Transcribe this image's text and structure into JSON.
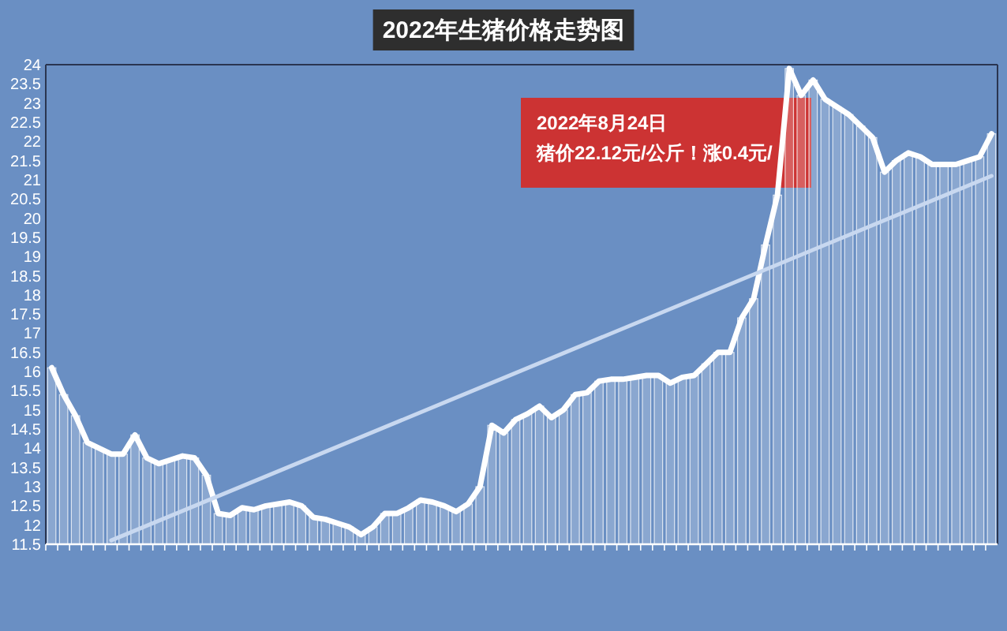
{
  "chart_data": {
    "type": "bar",
    "title": "2022年生猪价格走势图",
    "categories": [
      null,
      null,
      null,
      null,
      null,
      null,
      null,
      null,
      null,
      null,
      null,
      null,
      null,
      null,
      null,
      null,
      null,
      null,
      null,
      null,
      null,
      null,
      null,
      null,
      null,
      null,
      null,
      null,
      null,
      null,
      null,
      null,
      null,
      null,
      null,
      null,
      null,
      null,
      null,
      null,
      null,
      null,
      null,
      null,
      null,
      null,
      null,
      null,
      null,
      null,
      null,
      null,
      null,
      null,
      null,
      null,
      null,
      null,
      null,
      null,
      null,
      null,
      null,
      null,
      null,
      null,
      null,
      null,
      null,
      null,
      null,
      null,
      null,
      null,
      null,
      null,
      null,
      null,
      null,
      null
    ],
    "series": [
      {
        "color": "#ffffff",
        "values": [
          16.1,
          15.4,
          14.85,
          14.15,
          14.0,
          13.85,
          13.85,
          14.35,
          13.75,
          13.6,
          13.7,
          13.8,
          13.75,
          13.3,
          12.3,
          12.25,
          12.45,
          12.4,
          12.5,
          12.55,
          12.6,
          12.5,
          12.2,
          12.15,
          12.05,
          11.95,
          11.75,
          11.95,
          12.3,
          12.3,
          12.45,
          12.65,
          12.6,
          12.5,
          12.35,
          12.55,
          13.0,
          14.6,
          14.4,
          14.75,
          14.9,
          15.1,
          14.8,
          15.0,
          15.4,
          15.45,
          15.75,
          15.8,
          15.8,
          15.85,
          15.9,
          15.9,
          15.7,
          15.85,
          15.9,
          16.2,
          16.5,
          16.5,
          17.4,
          17.9,
          19.3,
          20.6,
          23.9,
          23.2,
          23.6,
          23.1,
          22.9,
          22.7,
          22.4,
          22.1,
          21.2,
          21.5,
          21.7,
          21.6,
          21.4,
          21.4,
          21.4,
          21.5,
          21.6,
          22.2
        ]
      },
      {
        "type": "line",
        "color": "#ffffff",
        "values": [
          16.1,
          15.4,
          14.85,
          14.15,
          14.0,
          13.85,
          13.85,
          14.35,
          13.75,
          13.6,
          13.7,
          13.8,
          13.75,
          13.3,
          12.3,
          12.25,
          12.45,
          12.4,
          12.5,
          12.55,
          12.6,
          12.5,
          12.2,
          12.15,
          12.05,
          11.95,
          11.75,
          11.95,
          12.3,
          12.3,
          12.45,
          12.65,
          12.6,
          12.5,
          12.35,
          12.55,
          13.0,
          14.6,
          14.4,
          14.75,
          14.9,
          15.1,
          14.8,
          15.0,
          15.4,
          15.45,
          15.75,
          15.8,
          15.8,
          15.85,
          15.9,
          15.9,
          15.7,
          15.85,
          15.9,
          16.2,
          16.5,
          16.5,
          17.4,
          17.9,
          19.3,
          20.6,
          23.9,
          23.2,
          23.6,
          23.1,
          22.9,
          22.7,
          22.4,
          22.1,
          21.2,
          21.5,
          21.7,
          21.6,
          21.4,
          21.4,
          21.4,
          21.5,
          21.6,
          22.2
        ]
      },
      {
        "type": "line",
        "color": "#c8d8f0",
        "values": [
          null,
          null,
          null,
          null,
          null,
          11.6,
          null,
          null,
          null,
          null,
          null,
          null,
          null,
          null,
          null,
          null,
          null,
          null,
          null,
          null,
          null,
          null,
          null,
          null,
          null,
          null,
          null,
          null,
          null,
          null,
          null,
          null,
          null,
          null,
          null,
          null,
          null,
          null,
          null,
          null,
          null,
          null,
          null,
          null,
          null,
          null,
          null,
          null,
          null,
          null,
          null,
          null,
          null,
          null,
          null,
          null,
          null,
          null,
          null,
          null,
          null,
          null,
          null,
          null,
          null,
          null,
          null,
          null,
          null,
          null,
          null,
          null,
          null,
          null,
          null,
          null,
          null,
          null,
          null,
          21.1
        ]
      }
    ],
    "ylim": [
      11.5,
      24
    ],
    "yticks": [
      11.5,
      12,
      12.5,
      13,
      13.5,
      14,
      14.5,
      15,
      15.5,
      16,
      16.5,
      17,
      17.5,
      18,
      18.5,
      19,
      19.5,
      20,
      20.5,
      21,
      21.5,
      22,
      22.5,
      23,
      23.5,
      24
    ],
    "annotations": [
      "2022年8月24日",
      "猪价22.12元/公斤！涨0.4元/"
    ],
    "grid": false,
    "tick_labels": "y",
    "line_style": "solid",
    "marker": "none"
  }
}
